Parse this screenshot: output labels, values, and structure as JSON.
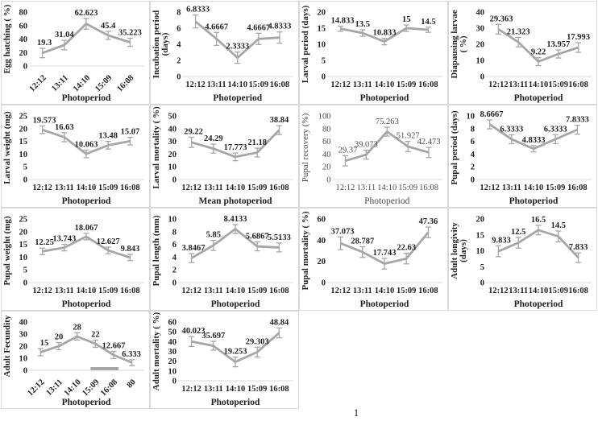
{
  "page": {
    "number_label": "1"
  },
  "style": {
    "line_color": "#a6a6a6",
    "error_bar_color": "#a6a6a6",
    "axis_color": "#d9d9d9",
    "panel_border_color": "#d9d9d9",
    "label_color": "#1f1f1f"
  },
  "chart_data": [
    {
      "type": "line",
      "title": "",
      "ylabel": "Egg hatching ( %)",
      "ylabel_lines": [
        "Egg hatching ( %)"
      ],
      "xlabel": "Photoperiod",
      "categories": [
        "12:12",
        "13:11",
        "14:10",
        "15:09",
        "16:08"
      ],
      "values": [
        19.3,
        31.04,
        62.623,
        45.4,
        35.223
      ],
      "labels": [
        "19.3",
        "31.04",
        "62.623",
        "45.4",
        "35.223"
      ],
      "errors": [
        7,
        7,
        8,
        6,
        6
      ],
      "yticks": [
        0,
        20,
        40,
        60,
        80
      ],
      "ylim": [
        0,
        80
      ],
      "rotated_xticks": true,
      "grid": false,
      "legend": "none",
      "bold": true
    },
    {
      "type": "line",
      "title": "",
      "ylabel": "Incubation period (days)",
      "ylabel_lines": [
        "Incubation period",
        "(days)"
      ],
      "xlabel": "Photoperiod",
      "categories": [
        "12:12",
        "13:11",
        "14:10",
        "15:09",
        "16:08"
      ],
      "values": [
        6.8333,
        4.6667,
        2.3333,
        4.6667,
        4.8333
      ],
      "labels": [
        "6.8333",
        "4.6667",
        "2.3333",
        "4.6667",
        "4.8333"
      ],
      "errors": [
        0.8,
        0.8,
        0.7,
        0.7,
        0.7
      ],
      "yticks": [
        0,
        2,
        4,
        6,
        8
      ],
      "ylim": [
        0,
        8
      ],
      "rotated_xticks": false,
      "grid": false,
      "legend": "none",
      "bold": true
    },
    {
      "type": "line",
      "title": "",
      "ylabel": "Larval period (days)",
      "ylabel_lines": [
        "Larval period (days)"
      ],
      "xlabel": "Photoperiod",
      "categories": [
        "12:12",
        "13:11",
        "14:10",
        "15:09",
        "16:08"
      ],
      "values": [
        14.833,
        13.5,
        10.833,
        15,
        14.5
      ],
      "labels": [
        "14.833",
        "13.5",
        "10.833",
        "15",
        "14.5"
      ],
      "errors": [
        0.8,
        1,
        1,
        1,
        0.8
      ],
      "yticks": [
        0,
        5,
        10,
        15,
        20
      ],
      "ylim": [
        0,
        20
      ],
      "rotated_xticks": false,
      "grid": false,
      "legend": "none",
      "bold": true
    },
    {
      "type": "line",
      "title": "",
      "ylabel": "Diapausing larvae ( %)",
      "ylabel_lines": [
        "Diapausing larvae",
        "( %)"
      ],
      "xlabel": "Photoperiod",
      "categories": [
        "12:12",
        "13:11",
        "14:10",
        "15:09",
        "16:08"
      ],
      "values": [
        29.363,
        21.323,
        9.22,
        13.957,
        17.993
      ],
      "labels": [
        "29.363",
        "21.323",
        "9.22",
        "13.957",
        "17.993"
      ],
      "errors": [
        3,
        3,
        2.5,
        2.5,
        3
      ],
      "yticks": [
        0,
        10,
        20,
        30,
        40
      ],
      "ylim": [
        0,
        40
      ],
      "rotated_xticks": false,
      "grid": false,
      "legend": "none",
      "bold": true
    },
    {
      "type": "line",
      "title": "",
      "ylabel": "Larval weight (mg)",
      "ylabel_lines": [
        "Larval weight (mg)"
      ],
      "xlabel": "Photoperiod",
      "categories": [
        "12:12",
        "13:11",
        "14:10",
        "15:09",
        "16:08"
      ],
      "values": [
        19.573,
        16.63,
        10.063,
        13.48,
        15.07
      ],
      "labels": [
        "19.573",
        "16.63",
        "10.063",
        "13.48",
        "15.07"
      ],
      "errors": [
        1.5,
        1.8,
        1.5,
        1.5,
        1.5
      ],
      "yticks": [
        0,
        5,
        10,
        15,
        20,
        25
      ],
      "ylim": [
        0,
        25
      ],
      "rotated_xticks": false,
      "grid": false,
      "legend": "none",
      "bold": true
    },
    {
      "type": "line",
      "title": "",
      "ylabel": "Larval mortality ( %)",
      "ylabel_lines": [
        "Larval mortality ( %)"
      ],
      "xlabel": "Mean photoperiod",
      "categories": [
        "12:12",
        "13:11",
        "14:10",
        "15:09",
        "16:08"
      ],
      "values": [
        29.22,
        24.29,
        17.773,
        21.18,
        38.84
      ],
      "labels": [
        "29.22",
        "24.29",
        "17.773",
        "21.18",
        "38.84"
      ],
      "errors": [
        4,
        3.5,
        3,
        3.5,
        3.5
      ],
      "yticks": [
        0,
        10,
        20,
        30,
        40,
        50
      ],
      "ylim": [
        0,
        50
      ],
      "rotated_xticks": false,
      "grid": false,
      "legend": "none",
      "bold": true
    },
    {
      "type": "line",
      "title": "",
      "ylabel": "Pupal recovery (%)",
      "ylabel_lines": [
        "Pupal recovery (%)"
      ],
      "xlabel": "Photoperiod",
      "categories": [
        "12:12",
        "13:11",
        "14:10",
        "15:09",
        "16:08"
      ],
      "values": [
        29.37,
        39.073,
        75.263,
        51.927,
        42.473
      ],
      "labels": [
        "29.37",
        "39.073",
        "75.263",
        "51.927",
        "42.473"
      ],
      "errors": [
        8,
        7,
        7,
        8,
        8
      ],
      "yticks": [
        0,
        20,
        40,
        60,
        80,
        100
      ],
      "ylim": [
        0,
        100
      ],
      "rotated_xticks": false,
      "grid": false,
      "legend": "none",
      "bold": false
    },
    {
      "type": "line",
      "title": "",
      "ylabel": "Pupal period (days)",
      "ylabel_lines": [
        "Pupal period (days)"
      ],
      "xlabel": "Photoperiod",
      "categories": [
        "12:12",
        "13:11",
        "14:10",
        "15:09",
        "16:08"
      ],
      "values": [
        8.6667,
        6.3333,
        4.8333,
        6.3333,
        7.8333
      ],
      "labels": [
        "8.6667",
        "6.3333",
        "4.8333",
        "6.3333",
        "7.8333"
      ],
      "errors": [
        0.7,
        0.7,
        0.5,
        0.7,
        0.7
      ],
      "yticks": [
        0,
        2,
        4,
        6,
        8,
        10
      ],
      "ylim": [
        0,
        10
      ],
      "rotated_xticks": false,
      "grid": false,
      "legend": "none",
      "bold": true
    },
    {
      "type": "line",
      "title": "",
      "ylabel": "Pupal weight (mg)",
      "ylabel_lines": [
        "Pupal weight (mg)"
      ],
      "xlabel": "Photoperiod",
      "categories": [
        "12:12",
        "13:11",
        "14:10",
        "15:09",
        "16:08"
      ],
      "values": [
        12.25,
        13.743,
        18.067,
        12.627,
        9.843
      ],
      "labels": [
        "12.25",
        "13.743",
        "18.067",
        "12.627",
        "9.843"
      ],
      "errors": [
        1.3,
        1.3,
        1.3,
        1.3,
        1.2
      ],
      "yticks": [
        0,
        5,
        10,
        15,
        20,
        25
      ],
      "ylim": [
        0,
        25
      ],
      "rotated_xticks": false,
      "grid": false,
      "legend": "none",
      "bold": true
    },
    {
      "type": "line",
      "title": "",
      "ylabel": "Pupal length (mm)",
      "ylabel_lines": [
        "Pupal length (mm)"
      ],
      "xlabel": "Photoperiod",
      "categories": [
        "12:12",
        "13:11",
        "14:10",
        "15:09",
        "16:08"
      ],
      "values": [
        3.8467,
        5.85,
        8.4133,
        5.6867,
        5.5133
      ],
      "labels": [
        "3.8467",
        "5.85",
        "8.4133",
        "5.6867",
        "5.5133"
      ],
      "errors": [
        0.7,
        0.8,
        0.7,
        0.7,
        0.7
      ],
      "yticks": [
        0,
        2,
        4,
        6,
        8,
        10
      ],
      "ylim": [
        0,
        10
      ],
      "rotated_xticks": false,
      "grid": false,
      "legend": "none",
      "bold": true
    },
    {
      "type": "line",
      "title": "",
      "ylabel": "Pupal mortality ( %)",
      "ylabel_lines": [
        "Pupal mortality ( %)"
      ],
      "xlabel": "Photoperiod",
      "categories": [
        "12:12",
        "13:11",
        "14:10",
        "15:09",
        "16:08"
      ],
      "values": [
        37.073,
        28.787,
        17.743,
        22.63,
        47.36
      ],
      "labels": [
        "37.073",
        "28.787",
        "17.743",
        "22.63",
        "47.36"
      ],
      "errors": [
        6,
        5,
        5,
        5,
        5
      ],
      "yticks": [
        0,
        20,
        40,
        60
      ],
      "ylim": [
        0,
        60
      ],
      "rotated_xticks": false,
      "grid": false,
      "legend": "none",
      "bold": true
    },
    {
      "type": "line",
      "title": "",
      "ylabel": "Adult longivity (days)",
      "ylabel_lines": [
        "Adult longivity",
        "(days)"
      ],
      "xlabel": "Photoperiod",
      "categories": [
        "12:12",
        "13:11",
        "14:10",
        "15:09",
        "16:08"
      ],
      "values": [
        9.833,
        12.5,
        16.5,
        14.5,
        7.833
      ],
      "labels": [
        "9.833",
        "12.5",
        "16.5",
        "14.5",
        "7.833"
      ],
      "errors": [
        1.7,
        1.7,
        1.5,
        1.7,
        1.5
      ],
      "yticks": [
        0,
        5,
        10,
        15,
        20
      ],
      "ylim": [
        0,
        20
      ],
      "rotated_xticks": false,
      "grid": false,
      "legend": "none",
      "bold": true
    },
    {
      "type": "line",
      "title": "",
      "ylabel": "Adult Fecundity",
      "ylabel_lines": [
        "Adult Fecundity"
      ],
      "xlabel": "Photoperiod",
      "categories": [
        "12:12",
        "13:11",
        "14:10",
        "15:09",
        "16:08",
        "80"
      ],
      "values": [
        15,
        20,
        28,
        22,
        12.667,
        6.333
      ],
      "labels": [
        "15",
        "20",
        "28",
        "22",
        "12.667",
        "6.333"
      ],
      "errors": [
        3,
        3,
        3,
        3,
        3,
        2.5
      ],
      "yticks": [
        0,
        10,
        20,
        30,
        40
      ],
      "ylim": [
        0,
        40
      ],
      "rotated_xticks": true,
      "grid": false,
      "legend": "none",
      "bold": true,
      "baseline_bar": {
        "from_index": 3,
        "to_index": 4
      }
    },
    {
      "type": "line",
      "title": "",
      "ylabel": "Adult mortality ( %)",
      "ylabel_lines": [
        "Adult mortality ( %)"
      ],
      "xlabel": "Photoperiod",
      "categories": [
        "12:12",
        "13:11",
        "14:10",
        "15:09",
        "16:08"
      ],
      "values": [
        40.023,
        35.697,
        19.253,
        29.303,
        48.84
      ],
      "labels": [
        "40.023",
        "35.697",
        "19.253",
        "29.303",
        "48.84"
      ],
      "errors": [
        5,
        4.5,
        5,
        5,
        5
      ],
      "yticks": [
        0,
        10,
        20,
        30,
        40,
        50,
        60
      ],
      "ylim": [
        0,
        60
      ],
      "rotated_xticks": false,
      "grid": false,
      "legend": "none",
      "bold": true
    }
  ]
}
